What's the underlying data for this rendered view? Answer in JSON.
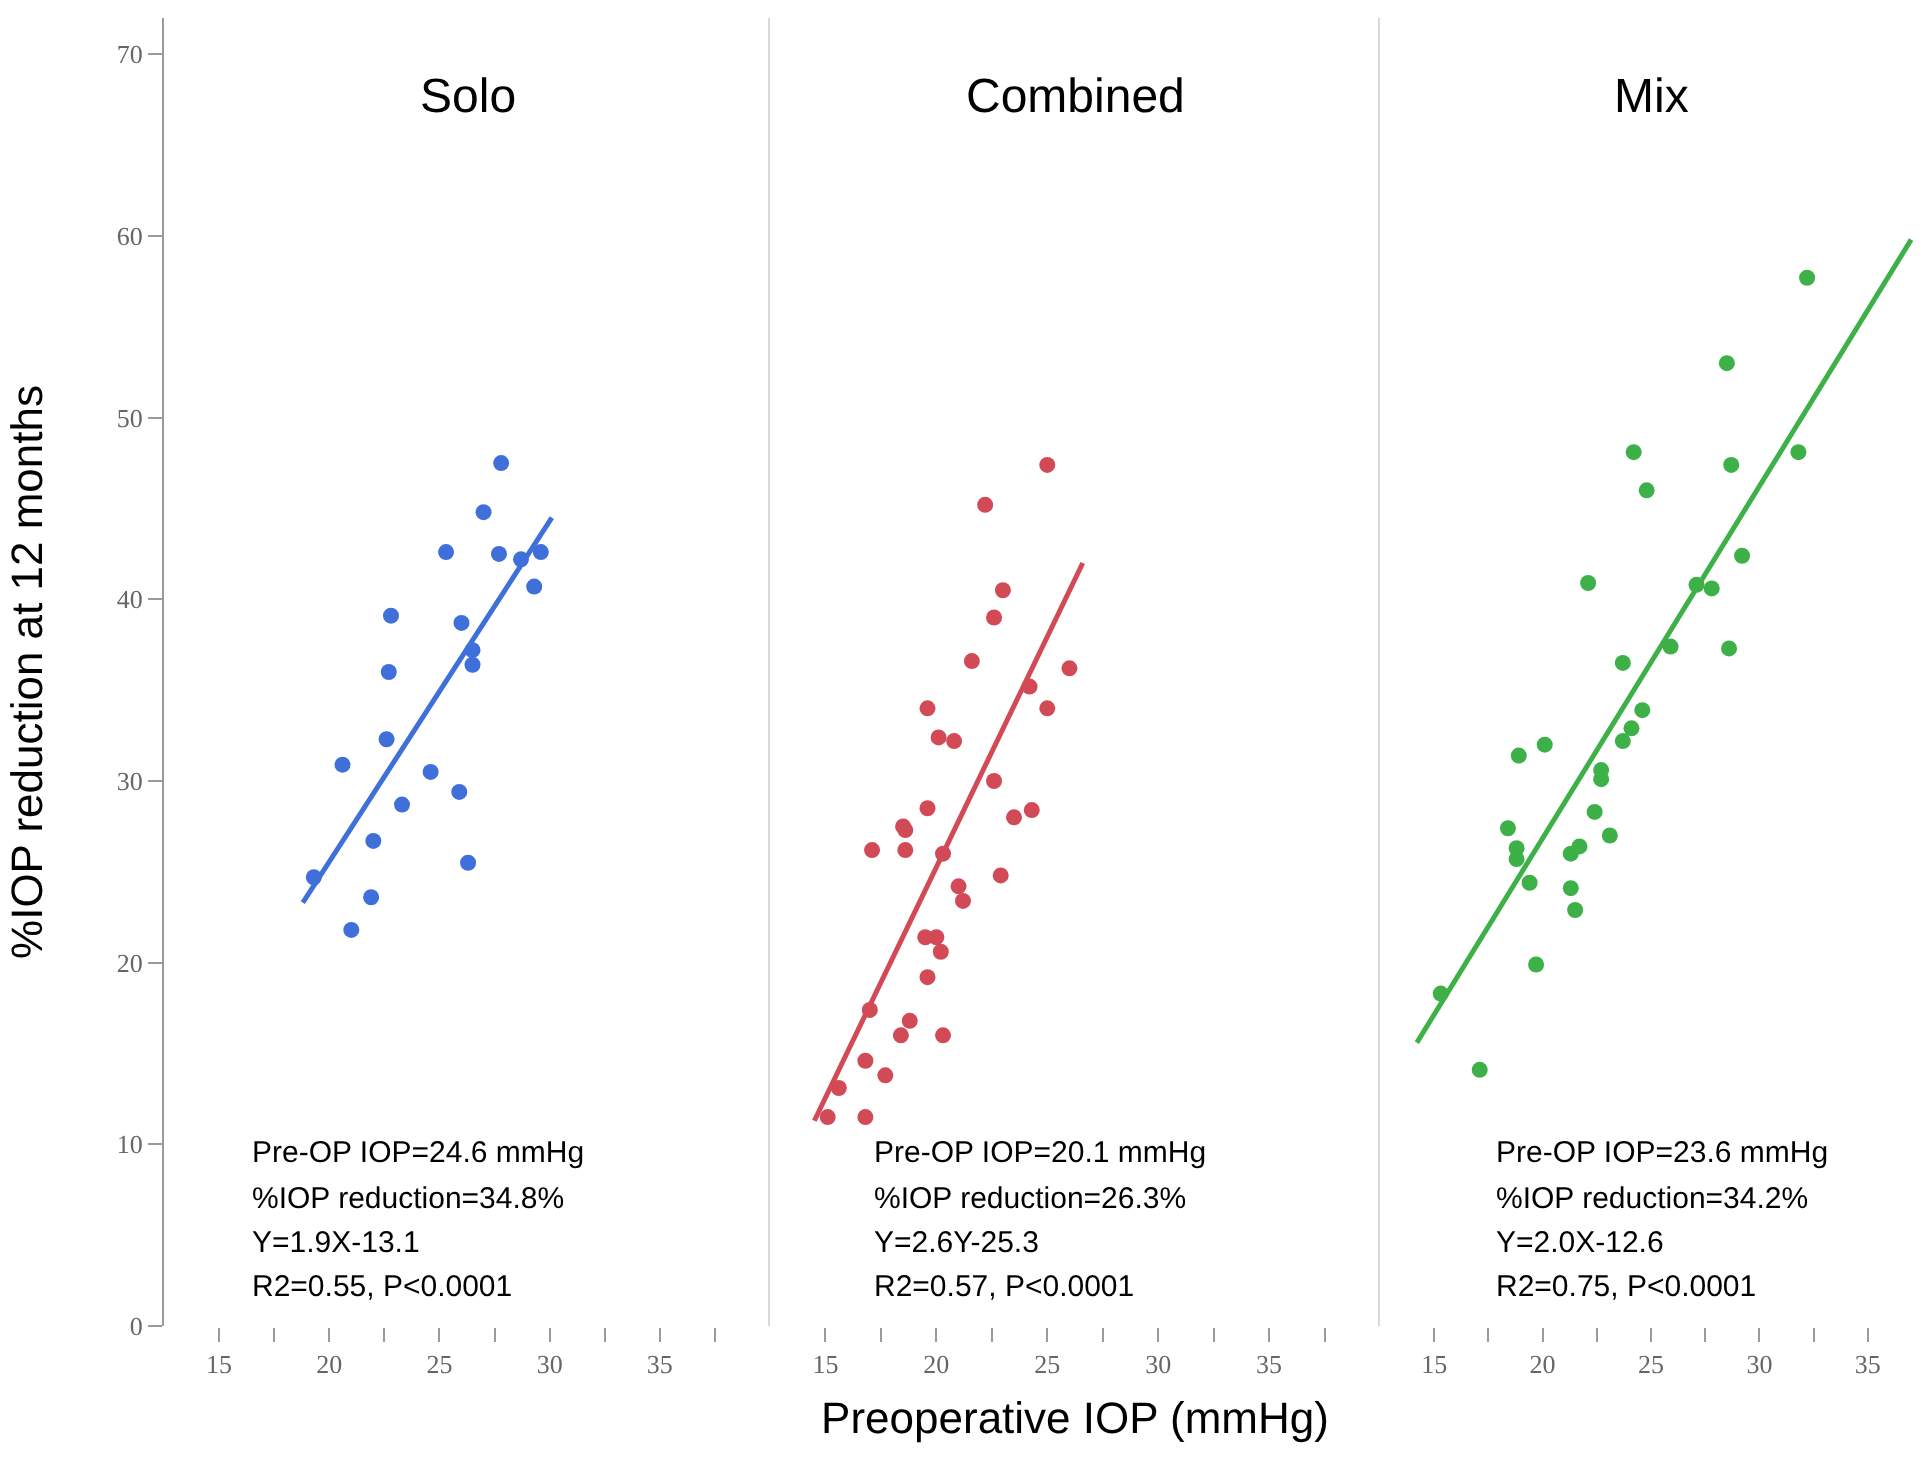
{
  "chart_data": [
    {
      "type": "scatter",
      "title": "Solo",
      "ylabel": "%IOP reduction at 12 months",
      "xlim": [
        12.5,
        40
      ],
      "xticks": [
        15,
        {
          "value": 17.5,
          "label": null
        },
        20,
        {
          "value": 22.5,
          "label": null
        },
        25,
        {
          "value": 27.5,
          "label": null
        },
        30,
        {
          "value": 32.5,
          "label": null
        },
        35,
        {
          "value": 37.5,
          "label": null
        }
      ],
      "ylim": [
        0,
        72
      ],
      "yticks": [
        0,
        10,
        20,
        30,
        40,
        50,
        60,
        70
      ],
      "annotations": [
        "Pre-OP IOP=24.6 mmHg",
        "%IOP reduction=34.8%",
        "Y=1.9X-13.1",
        "R2=0.55, P<0.0001"
      ],
      "series": [
        {
          "marker": "circle",
          "color": "#3f6fd9",
          "x": [
            27.8,
            27.0,
            25.3,
            27.7,
            28.7,
            29.6,
            29.3,
            22.8,
            26.0,
            26.5,
            26.5,
            22.7,
            22.6,
            20.6,
            24.6,
            23.3,
            25.9,
            22.0,
            26.3,
            19.3,
            21.9,
            21.0
          ],
          "values": [
            47.5,
            44.8,
            42.6,
            42.5,
            42.2,
            42.6,
            40.7,
            39.1,
            38.7,
            37.2,
            36.4,
            36.0,
            32.3,
            30.9,
            30.5,
            28.7,
            29.4,
            26.7,
            25.5,
            24.7,
            23.6,
            21.8
          ]
        },
        {
          "type": "line",
          "color": "#3f6fd9",
          "x": [
            18.8,
            30.1
          ],
          "values": [
            23.3,
            44.5
          ]
        }
      ]
    },
    {
      "type": "scatter",
      "title": "Combined",
      "xlabel": "Preoperative IOP (mmHg)",
      "xlim": [
        12.5,
        40
      ],
      "xticks": [
        15,
        {
          "value": 17.5,
          "label": null
        },
        20,
        {
          "value": 22.5,
          "label": null
        },
        25,
        {
          "value": 27.5,
          "label": null
        },
        30,
        {
          "value": 32.5,
          "label": null
        },
        35,
        {
          "value": 37.5,
          "label": null
        }
      ],
      "ylim": [
        0,
        72
      ],
      "tick_labels": "x",
      "annotations": [
        "Pre-OP IOP=20.1 mmHg",
        "%IOP reduction=26.3%",
        "Y=2.6Y-25.3",
        "R2=0.57, P<0.0001"
      ],
      "series": [
        {
          "marker": "circle",
          "color": "#d34a57",
          "x": [
            25.0,
            22.2,
            23.0,
            22.6,
            21.6,
            26.0,
            24.2,
            19.6,
            25.0,
            20.1,
            20.8,
            22.6,
            19.6,
            23.5,
            24.3,
            18.5,
            18.6,
            17.1,
            18.6,
            20.3,
            22.9,
            21.0,
            21.2,
            19.5,
            20.0,
            20.2,
            19.6,
            17.0,
            18.8,
            18.4,
            20.3,
            16.8,
            17.7,
            15.6,
            15.1,
            16.8
          ],
          "values": [
            47.4,
            45.2,
            40.5,
            39.0,
            36.6,
            36.2,
            35.2,
            34.0,
            34.0,
            32.4,
            32.2,
            30.0,
            28.5,
            28.0,
            28.4,
            27.5,
            27.3,
            26.2,
            26.2,
            26.0,
            24.8,
            24.2,
            23.4,
            21.4,
            21.4,
            20.6,
            19.2,
            17.4,
            16.8,
            16.0,
            16.0,
            14.6,
            13.8,
            13.1,
            11.5,
            11.5
          ]
        },
        {
          "type": "line",
          "color": "#d34a57",
          "x": [
            14.5,
            26.6
          ],
          "values": [
            11.3,
            42.0
          ]
        }
      ]
    },
    {
      "type": "scatter",
      "title": "Mix",
      "xlim": [
        12.5,
        37.5
      ],
      "xticks": [
        15,
        {
          "value": 17.5,
          "label": null
        },
        20,
        {
          "value": 22.5,
          "label": null
        },
        25,
        {
          "value": 27.5,
          "label": null
        },
        30,
        {
          "value": 32.5,
          "label": null
        },
        35
      ],
      "ylim": [
        0,
        72
      ],
      "tick_labels": "x",
      "annotations": [
        "Pre-OP IOP=23.6 mmHg",
        "%IOP reduction=34.2%",
        "Y=2.0X-12.6",
        "R2=0.75, P<0.0001"
      ],
      "series": [
        {
          "marker": "circle",
          "color": "#3db148",
          "x": [
            32.2,
            28.5,
            24.2,
            28.7,
            31.8,
            24.8,
            29.2,
            22.1,
            27.1,
            27.8,
            25.9,
            28.6,
            23.7,
            24.6,
            24.1,
            23.7,
            20.1,
            18.9,
            22.7,
            22.7,
            22.4,
            18.4,
            23.1,
            18.8,
            18.8,
            21.7,
            21.3,
            19.4,
            21.3,
            21.5,
            19.7,
            15.3,
            17.1
          ],
          "values": [
            57.7,
            53.0,
            48.1,
            47.4,
            48.1,
            46.0,
            42.4,
            40.9,
            40.8,
            40.6,
            37.4,
            37.3,
            36.5,
            33.9,
            32.9,
            32.2,
            32.0,
            31.4,
            30.6,
            30.1,
            28.3,
            27.4,
            27.0,
            26.3,
            25.7,
            26.4,
            26.0,
            24.4,
            24.1,
            22.9,
            19.9,
            18.3,
            14.1
          ]
        },
        {
          "type": "line",
          "color": "#3db148",
          "x": [
            14.2,
            37.0
          ],
          "values": [
            15.6,
            59.8
          ]
        }
      ]
    }
  ]
}
